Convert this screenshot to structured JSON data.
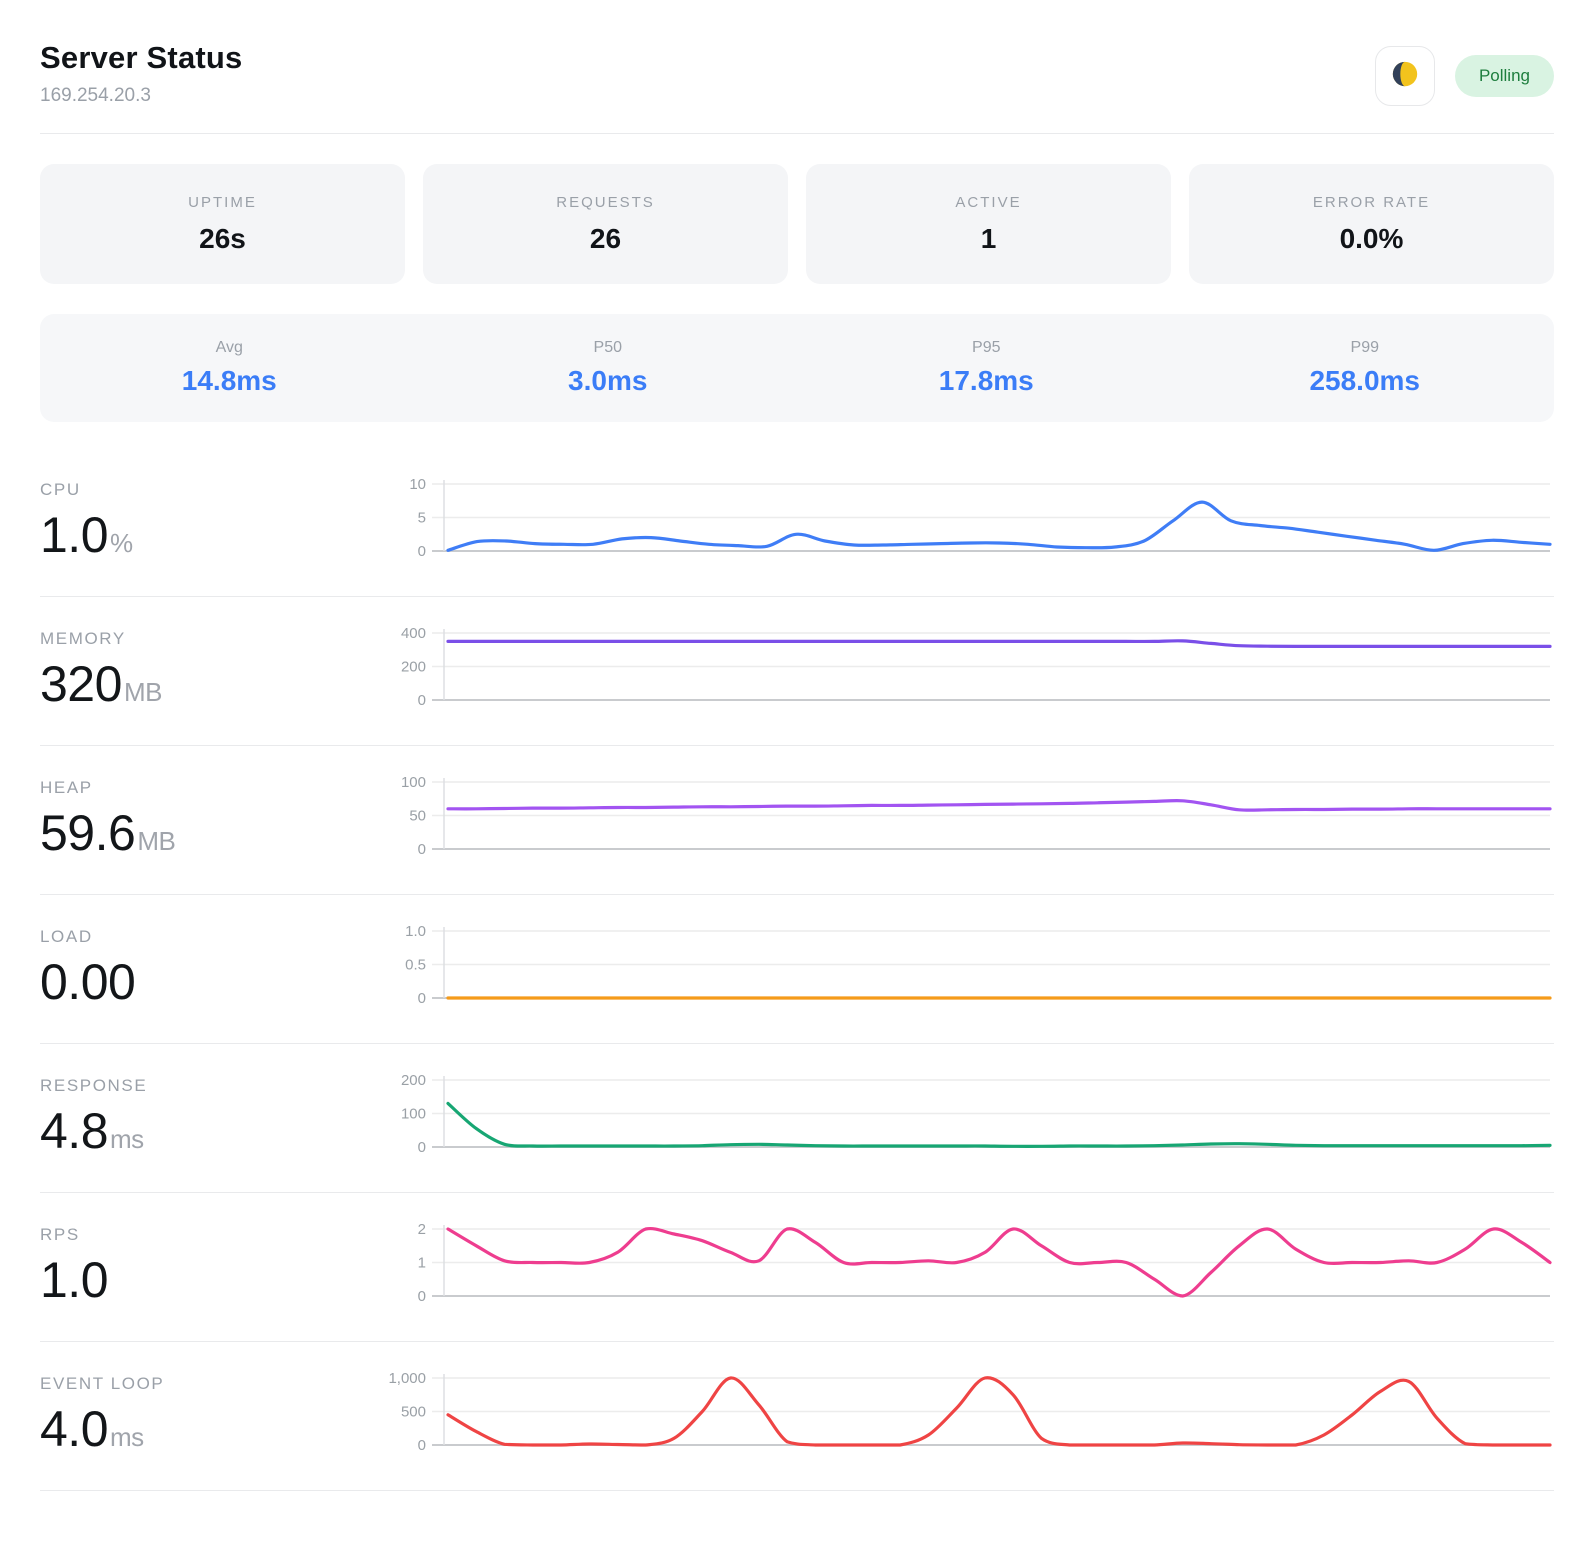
{
  "header": {
    "title": "Server Status",
    "subtitle": "169.254.20.3",
    "status_badge": "Polling",
    "badge_bg": "#d9f3e2",
    "badge_text_color": "#1e7e3e"
  },
  "stats": [
    {
      "label": "UPTIME",
      "value": "26s"
    },
    {
      "label": "REQUESTS",
      "value": "26"
    },
    {
      "label": "ACTIVE",
      "value": "1"
    },
    {
      "label": "ERROR RATE",
      "value": "0.0%"
    }
  ],
  "latency": [
    {
      "label": "Avg",
      "value": "14.8ms"
    },
    {
      "label": "P50",
      "value": "3.0ms"
    },
    {
      "label": "P95",
      "value": "17.8ms"
    },
    {
      "label": "P99",
      "value": "258.0ms"
    }
  ],
  "accent_blue": "#3b7df7",
  "chart_data": [
    {
      "type": "line",
      "name": "CPU",
      "display_value": "1.0",
      "unit": "%",
      "color": "#3f7df6",
      "ylim": [
        0,
        10
      ],
      "yticks": [
        "10",
        "5",
        "0"
      ],
      "values": [
        0.1,
        1.4,
        1.5,
        1.1,
        1.0,
        1.0,
        1.8,
        2.0,
        1.5,
        1.0,
        0.8,
        0.7,
        2.5,
        1.5,
        0.9,
        0.9,
        1.0,
        1.1,
        1.2,
        1.2,
        1.0,
        0.6,
        0.5,
        0.6,
        1.5,
        4.5,
        7.3,
        4.5,
        3.8,
        3.4,
        2.8,
        2.2,
        1.6,
        1.0,
        0.1,
        1.1,
        1.6,
        1.3,
        1.0
      ]
    },
    {
      "type": "line",
      "name": "MEMORY",
      "display_value": "320",
      "unit": "MB",
      "color": "#7a4fe8",
      "ylim": [
        0,
        400
      ],
      "yticks": [
        "400",
        "200",
        "0"
      ],
      "values": [
        350,
        350,
        350,
        350,
        350,
        350,
        350,
        350,
        350,
        350,
        350,
        350,
        350,
        350,
        350,
        350,
        350,
        350,
        350,
        350,
        350,
        350,
        350,
        350,
        350,
        350,
        353,
        338,
        324,
        321,
        320,
        320,
        320,
        320,
        320,
        320,
        320,
        320,
        320,
        320
      ]
    },
    {
      "type": "line",
      "name": "HEAP",
      "display_value": "59.6",
      "unit": "MB",
      "color": "#a254f1",
      "ylim": [
        0,
        100
      ],
      "yticks": [
        "100",
        "50",
        "0"
      ],
      "values": [
        60,
        60,
        60.5,
        61,
        61,
        61.5,
        62,
        62,
        62.5,
        63,
        63,
        63.5,
        64,
        64,
        64.5,
        65,
        65,
        65.5,
        66,
        66.5,
        67,
        67.5,
        68,
        69,
        70,
        71,
        72,
        66,
        58.5,
        58.5,
        59,
        59,
        59.5,
        59.5,
        60,
        60,
        60,
        60,
        60,
        60
      ]
    },
    {
      "type": "line",
      "name": "LOAD",
      "display_value": "0.00",
      "unit": "",
      "color": "#f59b1b",
      "ylim": [
        0,
        1
      ],
      "yticks": [
        "1.0",
        "0.5",
        "0"
      ],
      "values": [
        0,
        0,
        0,
        0,
        0,
        0,
        0,
        0,
        0,
        0,
        0,
        0,
        0,
        0,
        0,
        0,
        0,
        0,
        0,
        0,
        0,
        0,
        0,
        0,
        0,
        0,
        0,
        0,
        0,
        0,
        0,
        0,
        0,
        0,
        0,
        0,
        0,
        0,
        0,
        0
      ]
    },
    {
      "type": "line",
      "name": "RESPONSE",
      "display_value": "4.8",
      "unit": "ms",
      "color": "#17a673",
      "ylim": [
        0,
        200
      ],
      "yticks": [
        "200",
        "100",
        "0"
      ],
      "values": [
        130,
        55,
        8,
        3,
        3,
        3,
        3,
        3,
        3,
        4,
        7,
        8,
        6,
        4,
        3,
        3,
        3,
        3,
        3,
        3,
        2,
        2,
        3,
        3,
        3,
        4,
        6,
        9,
        10,
        8,
        5,
        4,
        4,
        4,
        4,
        4,
        4,
        4,
        4,
        5
      ]
    },
    {
      "type": "line",
      "name": "RPS",
      "display_value": "1.0",
      "unit": "",
      "color": "#ee3d8f",
      "ylim": [
        0,
        2
      ],
      "yticks": [
        "2",
        "1",
        "0"
      ],
      "values": [
        2.0,
        1.5,
        1.05,
        1.0,
        1.0,
        1.0,
        1.3,
        2.0,
        1.85,
        1.65,
        1.3,
        1.05,
        2.0,
        1.6,
        1.0,
        1.0,
        1.0,
        1.05,
        1.0,
        1.3,
        2.0,
        1.5,
        1.0,
        1.0,
        1.0,
        0.5,
        0.0,
        0.7,
        1.5,
        2.0,
        1.4,
        1.0,
        1.0,
        1.0,
        1.05,
        1.0,
        1.4,
        2.0,
        1.6,
        1.0
      ]
    },
    {
      "type": "line",
      "name": "EVENT LOOP",
      "display_value": "4.0",
      "unit": "ms",
      "color": "#ef4444",
      "ylim": [
        0,
        1000
      ],
      "yticks": [
        "1,000",
        "500",
        "0"
      ],
      "values": [
        450,
        200,
        10,
        0,
        0,
        15,
        8,
        0,
        100,
        500,
        1000,
        600,
        50,
        0,
        0,
        0,
        0,
        150,
        550,
        1000,
        750,
        100,
        0,
        0,
        0,
        0,
        30,
        20,
        5,
        0,
        0,
        150,
        450,
        800,
        950,
        400,
        20,
        0,
        0,
        0
      ]
    }
  ]
}
